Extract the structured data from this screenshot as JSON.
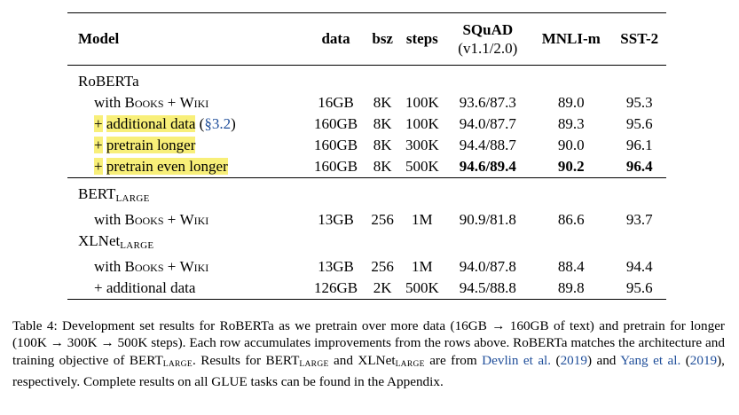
{
  "table": {
    "headers": {
      "model": "Model",
      "data": "data",
      "bsz": "bsz",
      "steps": "steps",
      "squad": "SQuAD",
      "squad_sub": "(v1.1/2.0)",
      "mnli": "MNLI-m",
      "sst2": "SST-2"
    },
    "roberta": {
      "label": "RoBERTa",
      "rows": [
        {
          "prefix": "with ",
          "books": "Books",
          "plus": " + ",
          "wiki": "Wiki",
          "data": "16GB",
          "bsz": "8K",
          "steps": "100K",
          "squad": "93.6/87.3",
          "mnli": "89.0",
          "sst2": "95.3"
        },
        {
          "plus": "+",
          "text": "additional data",
          "ref": "(§3.2)",
          "data": "160GB",
          "bsz": "8K",
          "steps": "100K",
          "squad": "94.0/87.7",
          "mnli": "89.3",
          "sst2": "95.6"
        },
        {
          "plus": "+",
          "text": "pretrain longer",
          "data": "160GB",
          "bsz": "8K",
          "steps": "300K",
          "squad": "94.4/88.7",
          "mnli": "90.0",
          "sst2": "96.1"
        },
        {
          "plus": "+",
          "text": "pretrain even longer",
          "data": "160GB",
          "bsz": "8K",
          "steps": "500K",
          "squad": "94.6/89.4",
          "mnli": "90.2",
          "sst2": "96.4"
        }
      ]
    },
    "bert": {
      "label": "BERT",
      "label_sub": "LARGE",
      "row": {
        "prefix": "with ",
        "books": "Books",
        "plus": " + ",
        "wiki": "Wiki",
        "data": "13GB",
        "bsz": "256",
        "steps": "1M",
        "squad": "90.9/81.8",
        "mnli": "86.6",
        "sst2": "93.7"
      }
    },
    "xlnet": {
      "label": "XLNet",
      "label_sub": "LARGE",
      "rows": [
        {
          "prefix": "with ",
          "books": "Books",
          "plus": " + ",
          "wiki": "Wiki",
          "data": "13GB",
          "bsz": "256",
          "steps": "1M",
          "squad": "94.0/87.8",
          "mnli": "88.4",
          "sst2": "94.4"
        },
        {
          "text": "+ additional data",
          "data": "126GB",
          "bsz": "2K",
          "steps": "500K",
          "squad": "94.5/88.8",
          "mnli": "89.8",
          "sst2": "95.6"
        }
      ]
    }
  },
  "caption": {
    "p1": "Table 4: Development set results for RoBERTa as we pretrain over more data (16GB → 160GB of text) and pretrain for longer (100K → 300K → 500K steps). Each row accumulates improvements from the rows above. RoBERTa matches the architecture and training objective of BERT",
    "large1": "LARGE",
    "p2": ". Results for BERT",
    "large2": "LARGE",
    "p3": " and XLNet",
    "large3": "LARGE",
    "p4": " are from ",
    "cite1": "Devlin et al.",
    "p5": " (",
    "cite1_year": "2019",
    "p6": ") and ",
    "cite2": "Yang et al.",
    "p7": " (",
    "cite2_year": "2019",
    "p8": "), respectively. Complete results on all GLUE tasks can be found in the Appendix."
  },
  "colors": {
    "highlight": "#f8ef79",
    "link": "#1f4e9a"
  }
}
